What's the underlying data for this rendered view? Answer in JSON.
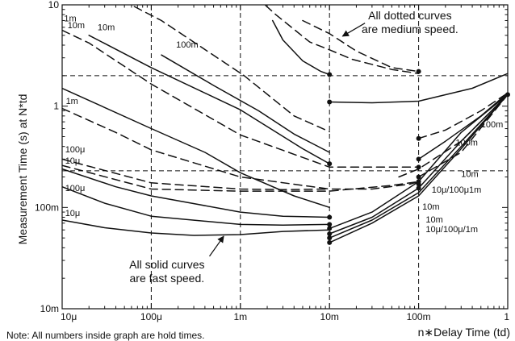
{
  "chart_data": {
    "type": "line",
    "title": "",
    "xlabel": "n∗Delay Time (td)",
    "ylabel": "Measurement Time (s) at N*td",
    "x_scale": "log",
    "y_scale": "log",
    "xlim": [
      1e-05,
      1
    ],
    "ylim": [
      0.01,
      10
    ],
    "x_ticks": [
      {
        "value": 1e-05,
        "label": "10μ"
      },
      {
        "value": 0.0001,
        "label": "100μ"
      },
      {
        "value": 0.001,
        "label": "1m"
      },
      {
        "value": 0.01,
        "label": "10m"
      },
      {
        "value": 0.1,
        "label": "100m"
      },
      {
        "value": 1,
        "label": "1"
      }
    ],
    "y_ticks": [
      {
        "value": 10,
        "label": "10"
      },
      {
        "value": 1,
        "label": "1"
      },
      {
        "value": 0.1,
        "label": "100m"
      },
      {
        "value": 0.01,
        "label": "10m"
      }
    ],
    "grid_x": [
      0.0001,
      0.001,
      0.01,
      0.1
    ],
    "grid_y": [
      2,
      0.23
    ],
    "curve_labels": [
      {
        "text": "10m",
        "x": 3e-05,
        "y": 11.6
      },
      {
        "text": "100m",
        "x": 0.0013,
        "y": 12.5
      },
      {
        "text": "10m",
        "x": 1.15e-05,
        "y": 5.9
      },
      {
        "text": "1m",
        "x": 1.05e-05,
        "y": 6.9
      },
      {
        "text": "10m",
        "x": 2.5e-05,
        "y": 5.6
      },
      {
        "text": "100m",
        "x": 0.00019,
        "y": 3.8
      },
      {
        "text": "1m",
        "x": 1.1e-05,
        "y": 1.05
      },
      {
        "text": "100μ",
        "x": 1.08e-05,
        "y": 0.35
      },
      {
        "text": "10μ",
        "x": 1.08e-05,
        "y": 0.27
      },
      {
        "text": "100μ",
        "x": 1.08e-05,
        "y": 0.145
      },
      {
        "text": "10μ",
        "x": 1.08e-05,
        "y": 0.082
      },
      {
        "text": "100m",
        "x": 0.5,
        "y": 0.62
      },
      {
        "text": "100m",
        "x": 0.26,
        "y": 0.41
      },
      {
        "text": "10m",
        "x": 0.3,
        "y": 0.2
      },
      {
        "text": "10μ/100μ1m",
        "x": 0.14,
        "y": 0.14
      },
      {
        "text": "10m",
        "x": 0.11,
        "y": 0.095
      },
      {
        "text": "10m",
        "x": 0.12,
        "y": 0.071
      },
      {
        "text": "10μ/100μ/1m",
        "x": 0.12,
        "y": 0.057
      }
    ],
    "series": [
      {
        "style": "dashed",
        "points": [
          [
            4.8e-05,
            11
          ],
          [
            0.00013,
            7
          ],
          [
            0.0011,
            2.0
          ],
          [
            0.004,
            0.8
          ],
          [
            0.01,
            0.56
          ]
        ]
      },
      {
        "style": "dashed",
        "points": [
          [
            0.0015,
            12
          ],
          [
            0.0025,
            8
          ],
          [
            0.006,
            4.3
          ],
          [
            0.01,
            3.6
          ],
          [
            0.018,
            2.9
          ],
          [
            0.05,
            2.3
          ],
          [
            0.1,
            2.1
          ]
        ]
      },
      {
        "style": "dashed",
        "points": [
          [
            0.005,
            7
          ],
          [
            0.01,
            5.2
          ],
          [
            0.02,
            3.5
          ],
          [
            0.05,
            2.4
          ],
          [
            0.1,
            2.2
          ]
        ]
      },
      {
        "style": "solid",
        "points": [
          [
            0.0023,
            7
          ],
          [
            0.003,
            4.5
          ],
          [
            0.005,
            2.8
          ],
          [
            0.008,
            2.2
          ],
          [
            0.01,
            2.05
          ]
        ]
      },
      {
        "style": "solid",
        "points": [
          [
            0.01,
            1.1
          ],
          [
            0.03,
            1.08
          ],
          [
            0.1,
            1.12
          ],
          [
            0.4,
            1.5
          ],
          [
            1,
            2.1
          ]
        ]
      },
      {
        "style": "dashed",
        "points": [
          [
            1e-05,
            5.6
          ],
          [
            2e-05,
            4.2
          ],
          [
            0.0001,
            1.65
          ],
          [
            0.001,
            0.52
          ],
          [
            0.01,
            0.25
          ],
          [
            0.03,
            0.25
          ],
          [
            0.1,
            0.25
          ]
        ]
      },
      {
        "style": "solid",
        "points": [
          [
            2e-05,
            5.0
          ],
          [
            0.0001,
            2.4
          ],
          [
            0.001,
            0.92
          ],
          [
            0.005,
            0.38
          ],
          [
            0.01,
            0.27
          ]
        ]
      },
      {
        "style": "solid",
        "points": [
          [
            0.00013,
            3.2
          ],
          [
            0.0005,
            1.6
          ],
          [
            0.0016,
            0.9
          ],
          [
            0.004,
            0.53
          ],
          [
            0.01,
            0.35
          ]
        ]
      },
      {
        "style": "dashed",
        "points": [
          [
            1e-05,
            0.95
          ],
          [
            4e-05,
            0.55
          ],
          [
            0.0001,
            0.37
          ],
          [
            0.001,
            0.2
          ],
          [
            0.01,
            0.152
          ],
          [
            0.03,
            0.152
          ],
          [
            0.08,
            0.17
          ],
          [
            0.1,
            0.18
          ]
        ]
      },
      {
        "style": "solid",
        "points": [
          [
            1e-05,
            1.5
          ],
          [
            0.0001,
            0.6
          ],
          [
            0.0004,
            0.35
          ],
          [
            0.001,
            0.22
          ],
          [
            0.004,
            0.13
          ],
          [
            0.01,
            0.1
          ]
        ]
      },
      {
        "style": "dashed",
        "points": [
          [
            1e-05,
            0.3
          ],
          [
            0.0001,
            0.175
          ],
          [
            0.001,
            0.152
          ],
          [
            0.003,
            0.15
          ],
          [
            0.01,
            0.152
          ]
        ]
      },
      {
        "style": "dashed",
        "points": [
          [
            1e-05,
            0.26
          ],
          [
            0.0001,
            0.152
          ],
          [
            0.001,
            0.145
          ],
          [
            0.01,
            0.145
          ],
          [
            0.05,
            0.165
          ],
          [
            0.1,
            0.18
          ]
        ]
      },
      {
        "style": "solid",
        "points": [
          [
            1e-05,
            0.24
          ],
          [
            4e-05,
            0.16
          ],
          [
            0.0001,
            0.13
          ],
          [
            0.001,
            0.09
          ],
          [
            0.003,
            0.082
          ],
          [
            0.01,
            0.08
          ]
        ]
      },
      {
        "style": "solid",
        "points": [
          [
            1e-05,
            0.16
          ],
          [
            3e-05,
            0.11
          ],
          [
            0.0001,
            0.082
          ],
          [
            0.001,
            0.068
          ],
          [
            0.003,
            0.067
          ],
          [
            0.01,
            0.068
          ]
        ]
      },
      {
        "style": "solid",
        "points": [
          [
            1e-05,
            0.075
          ],
          [
            3e-05,
            0.063
          ],
          [
            0.0001,
            0.056
          ],
          [
            0.0003,
            0.053
          ],
          [
            0.001,
            0.054
          ],
          [
            0.003,
            0.058
          ],
          [
            0.01,
            0.06
          ]
        ]
      },
      {
        "style": "dashed",
        "points": [
          [
            0.1,
            0.48
          ],
          [
            0.2,
            0.58
          ],
          [
            0.5,
            0.9
          ],
          [
            1,
            1.35
          ]
        ]
      },
      {
        "style": "solid",
        "points": [
          [
            0.1,
            0.3
          ],
          [
            0.2,
            0.45
          ],
          [
            0.5,
            0.8
          ],
          [
            1,
            1.35
          ]
        ]
      },
      {
        "style": "solid",
        "points": [
          [
            0.01,
            0.045
          ],
          [
            0.03,
            0.07
          ],
          [
            0.1,
            0.13
          ],
          [
            0.3,
            0.38
          ],
          [
            1,
            1.3
          ]
        ]
      },
      {
        "style": "solid",
        "points": [
          [
            0.01,
            0.05
          ],
          [
            0.03,
            0.075
          ],
          [
            0.1,
            0.14
          ],
          [
            0.3,
            0.4
          ],
          [
            1,
            1.3
          ]
        ]
      },
      {
        "style": "solid",
        "points": [
          [
            0.01,
            0.055
          ],
          [
            0.03,
            0.08
          ],
          [
            0.1,
            0.155
          ],
          [
            0.3,
            0.45
          ],
          [
            1,
            1.3
          ]
        ]
      },
      {
        "style": "solid",
        "points": [
          [
            0.01,
            0.062
          ],
          [
            0.03,
            0.09
          ],
          [
            0.1,
            0.18
          ],
          [
            0.3,
            0.55
          ],
          [
            1,
            1.3
          ]
        ]
      },
      {
        "style": "dashed",
        "points": [
          [
            0.06,
            0.2
          ],
          [
            0.1,
            0.24
          ],
          [
            0.3,
            0.45
          ],
          [
            1,
            1.3
          ]
        ]
      },
      {
        "style": "dashed",
        "points": [
          [
            0.1,
            0.2
          ],
          [
            0.3,
            0.35
          ],
          [
            1,
            1.3
          ]
        ]
      }
    ],
    "markers": [
      [
        0.01,
        2.05
      ],
      [
        0.01,
        1.1
      ],
      [
        0.01,
        0.27
      ],
      [
        0.01,
        0.08
      ],
      [
        0.01,
        0.068
      ],
      [
        0.01,
        0.062
      ],
      [
        0.01,
        0.055
      ],
      [
        0.01,
        0.05
      ],
      [
        0.01,
        0.045
      ],
      [
        0.1,
        2.2
      ],
      [
        0.1,
        0.48
      ],
      [
        0.1,
        0.3
      ],
      [
        0.1,
        0.25
      ],
      [
        0.1,
        0.2
      ],
      [
        0.1,
        0.18
      ],
      [
        0.1,
        0.17
      ],
      [
        0.1,
        0.155
      ],
      [
        1,
        1.3
      ]
    ],
    "annotations": [
      {
        "lines": [
          "All dotted curves",
          "are medium speed."
        ],
        "text_at": [
          0.08,
          7.2
        ],
        "arrow_from": [
          0.025,
          6.6
        ],
        "arrow_to": [
          0.014,
          4.9
        ]
      },
      {
        "lines": [
          "All solid curves",
          "are fast speed."
        ],
        "text_at": [
          0.00015,
          0.025
        ],
        "arrow_from": [
          0.00045,
          0.033
        ],
        "arrow_to": [
          0.00065,
          0.052
        ]
      }
    ]
  },
  "note": "Note: All numbers inside graph are hold times."
}
